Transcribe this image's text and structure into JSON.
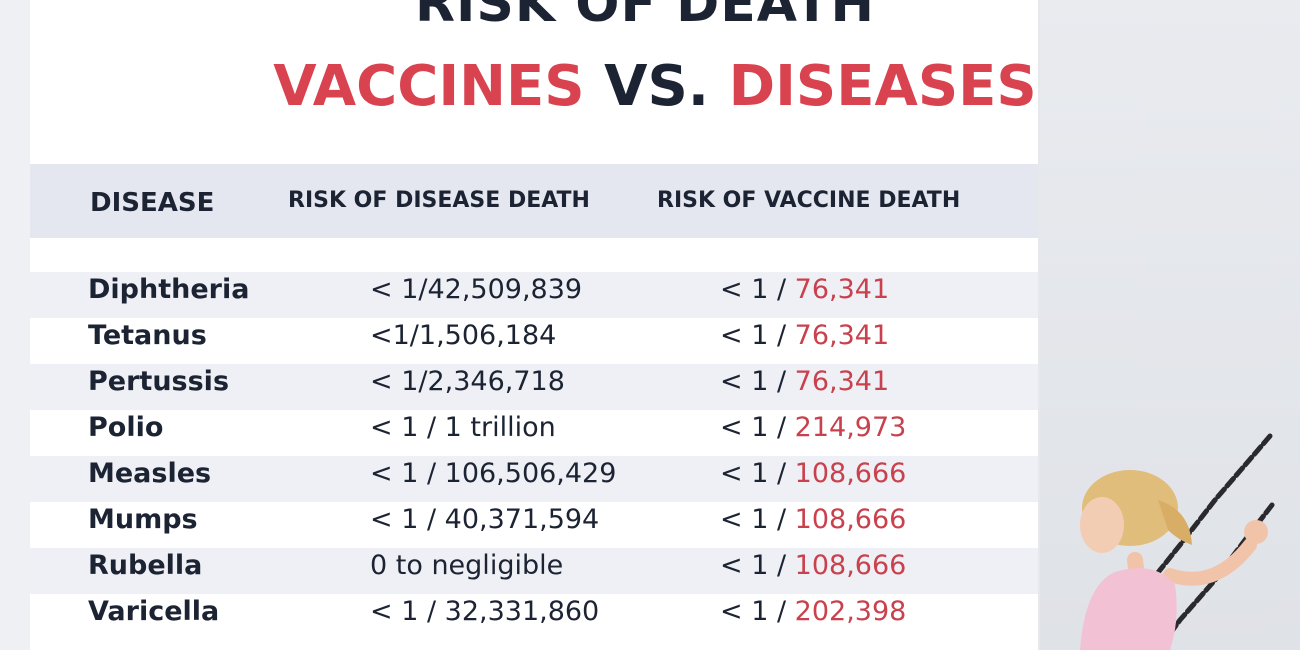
{
  "title": {
    "line1": "RISK OF DEATH",
    "line2_part1": "VACCINES",
    "line2_part2": "VS.",
    "line2_part3": "DISEASES"
  },
  "table": {
    "headers": [
      "DISEASE",
      "RISK OF DISEASE DEATH",
      "RISK OF VACCINE DEATH"
    ],
    "rows": [
      {
        "disease": "Diphtheria",
        "disease_risk": "< 1/42,509,839",
        "vaccine_prefix": "< 1 / ",
        "vaccine_value": "76,341"
      },
      {
        "disease": "Tetanus",
        "disease_risk": "<1/1,506,184",
        "vaccine_prefix": "< 1 / ",
        "vaccine_value": "76,341"
      },
      {
        "disease": "Pertussis",
        "disease_risk": "< 1/2,346,718",
        "vaccine_prefix": "< 1 / ",
        "vaccine_value": "76,341"
      },
      {
        "disease": "Polio",
        "disease_risk": "< 1 / 1 trillion",
        "vaccine_prefix": "< 1 / ",
        "vaccine_value": "214,973"
      },
      {
        "disease": "Measles",
        "disease_risk": "< 1 / 106,506,429",
        "vaccine_prefix": "< 1 / ",
        "vaccine_value": "108,666"
      },
      {
        "disease": "Mumps",
        "disease_risk": "< 1 / 40,371,594",
        "vaccine_prefix": "< 1 / ",
        "vaccine_value": "108,666"
      },
      {
        "disease": "Rubella",
        "disease_risk": "0 to negligible",
        "vaccine_prefix": "< 1 / ",
        "vaccine_value": "108,666"
      },
      {
        "disease": "Varicella",
        "disease_risk": "< 1 / 32,331,860",
        "vaccine_prefix": "< 1 / ",
        "vaccine_value": "202,398"
      }
    ]
  },
  "colors": {
    "accent_red": "#d9434f",
    "dark": "#1c2333",
    "header_bg": "#e4e7ef"
  }
}
